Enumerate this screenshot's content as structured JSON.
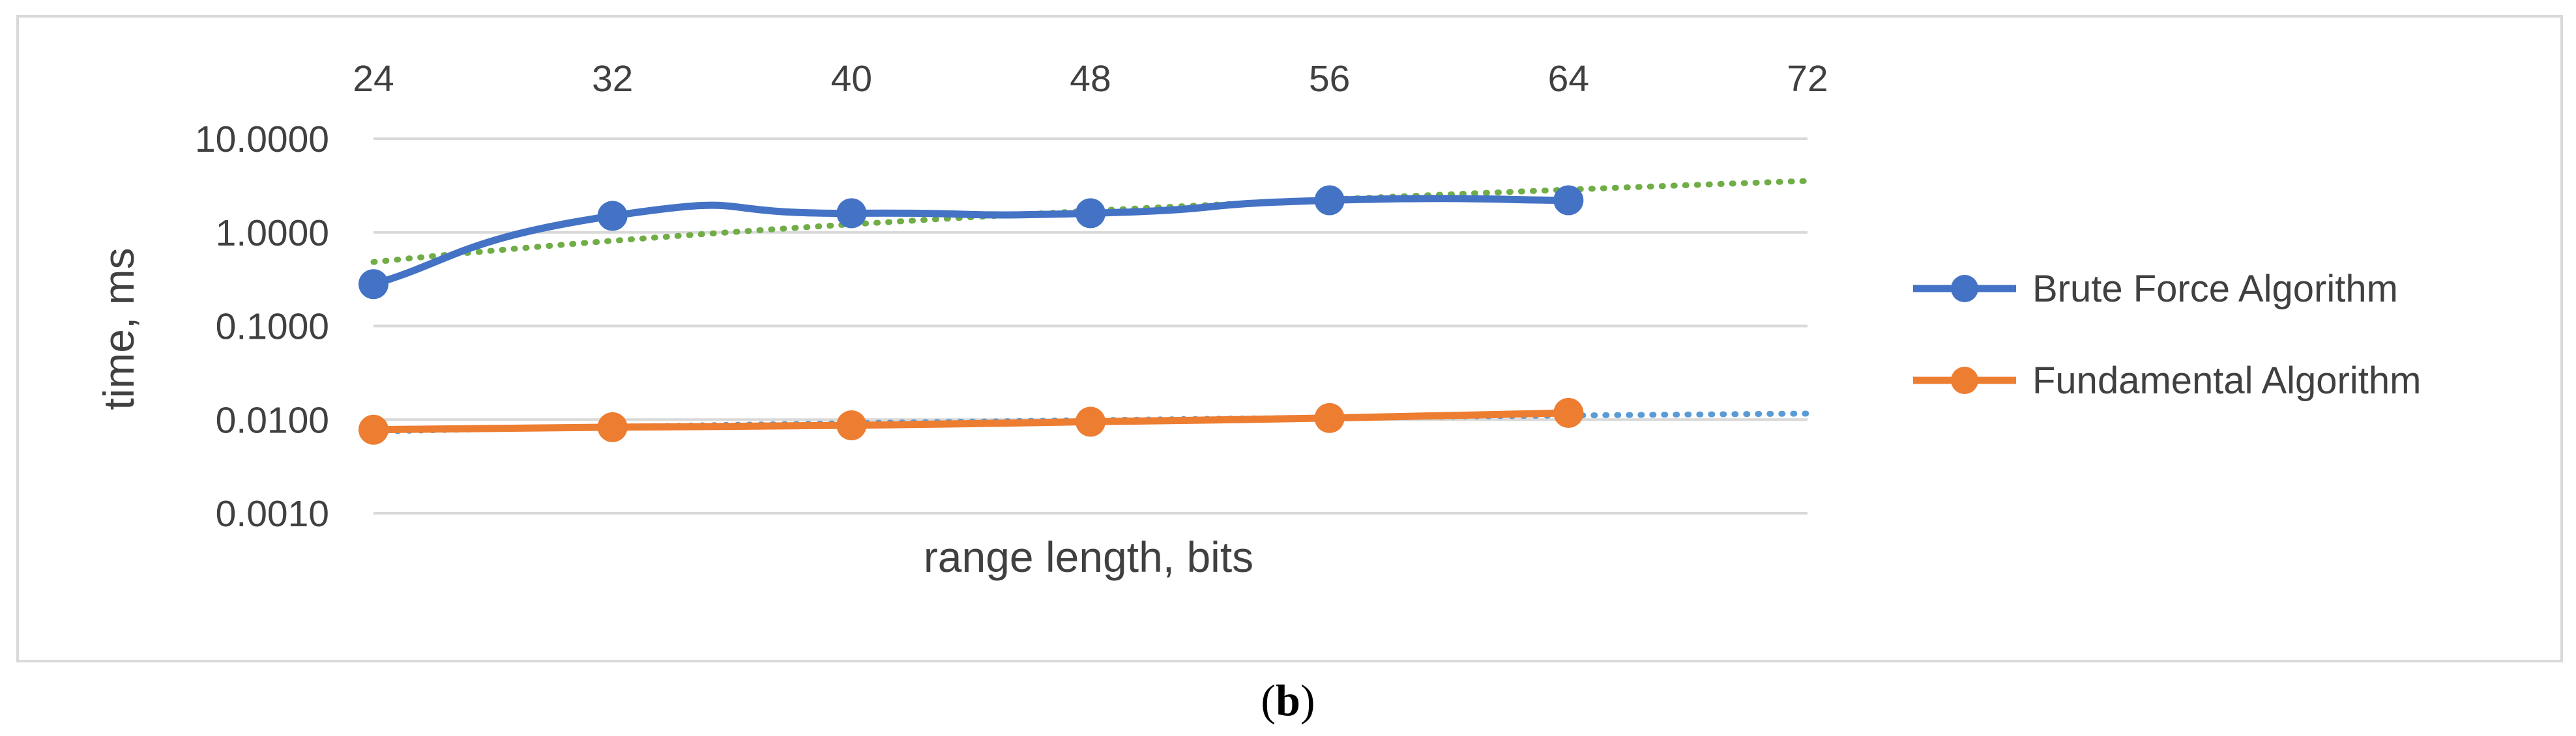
{
  "chart_data": {
    "type": "line",
    "xlabel": "range length, bits",
    "ylabel": "time, ms",
    "x_ticks": [
      "24",
      "32",
      "40",
      "48",
      "56",
      "64",
      "72"
    ],
    "xlim": [
      24,
      72
    ],
    "x_axis_position": "top",
    "y_scale": "log",
    "ylim": [
      0.001,
      10
    ],
    "y_ticks": [
      "10.0000",
      "1.0000",
      "0.1000",
      "0.0100",
      "0.0010"
    ],
    "grid": true,
    "legend_position": "right",
    "series": [
      {
        "name": "Brute Force Algorithm",
        "color": "#4472C4",
        "x": [
          24,
          32,
          40,
          48,
          56,
          64
        ],
        "values": [
          0.28,
          1.5,
          1.6,
          1.6,
          2.2,
          2.2
        ],
        "trendline_color": "#70AD47"
      },
      {
        "name": "Fundamental Algorithm",
        "color": "#ED7D31",
        "x": [
          24,
          32,
          40,
          48,
          56,
          64
        ],
        "values": [
          0.0078,
          0.0083,
          0.0087,
          0.0095,
          0.0104,
          0.0118
        ],
        "trendline_color": "#5B9BD5"
      }
    ]
  },
  "caption": {
    "open": "(",
    "letter": "b",
    "close": ")"
  }
}
